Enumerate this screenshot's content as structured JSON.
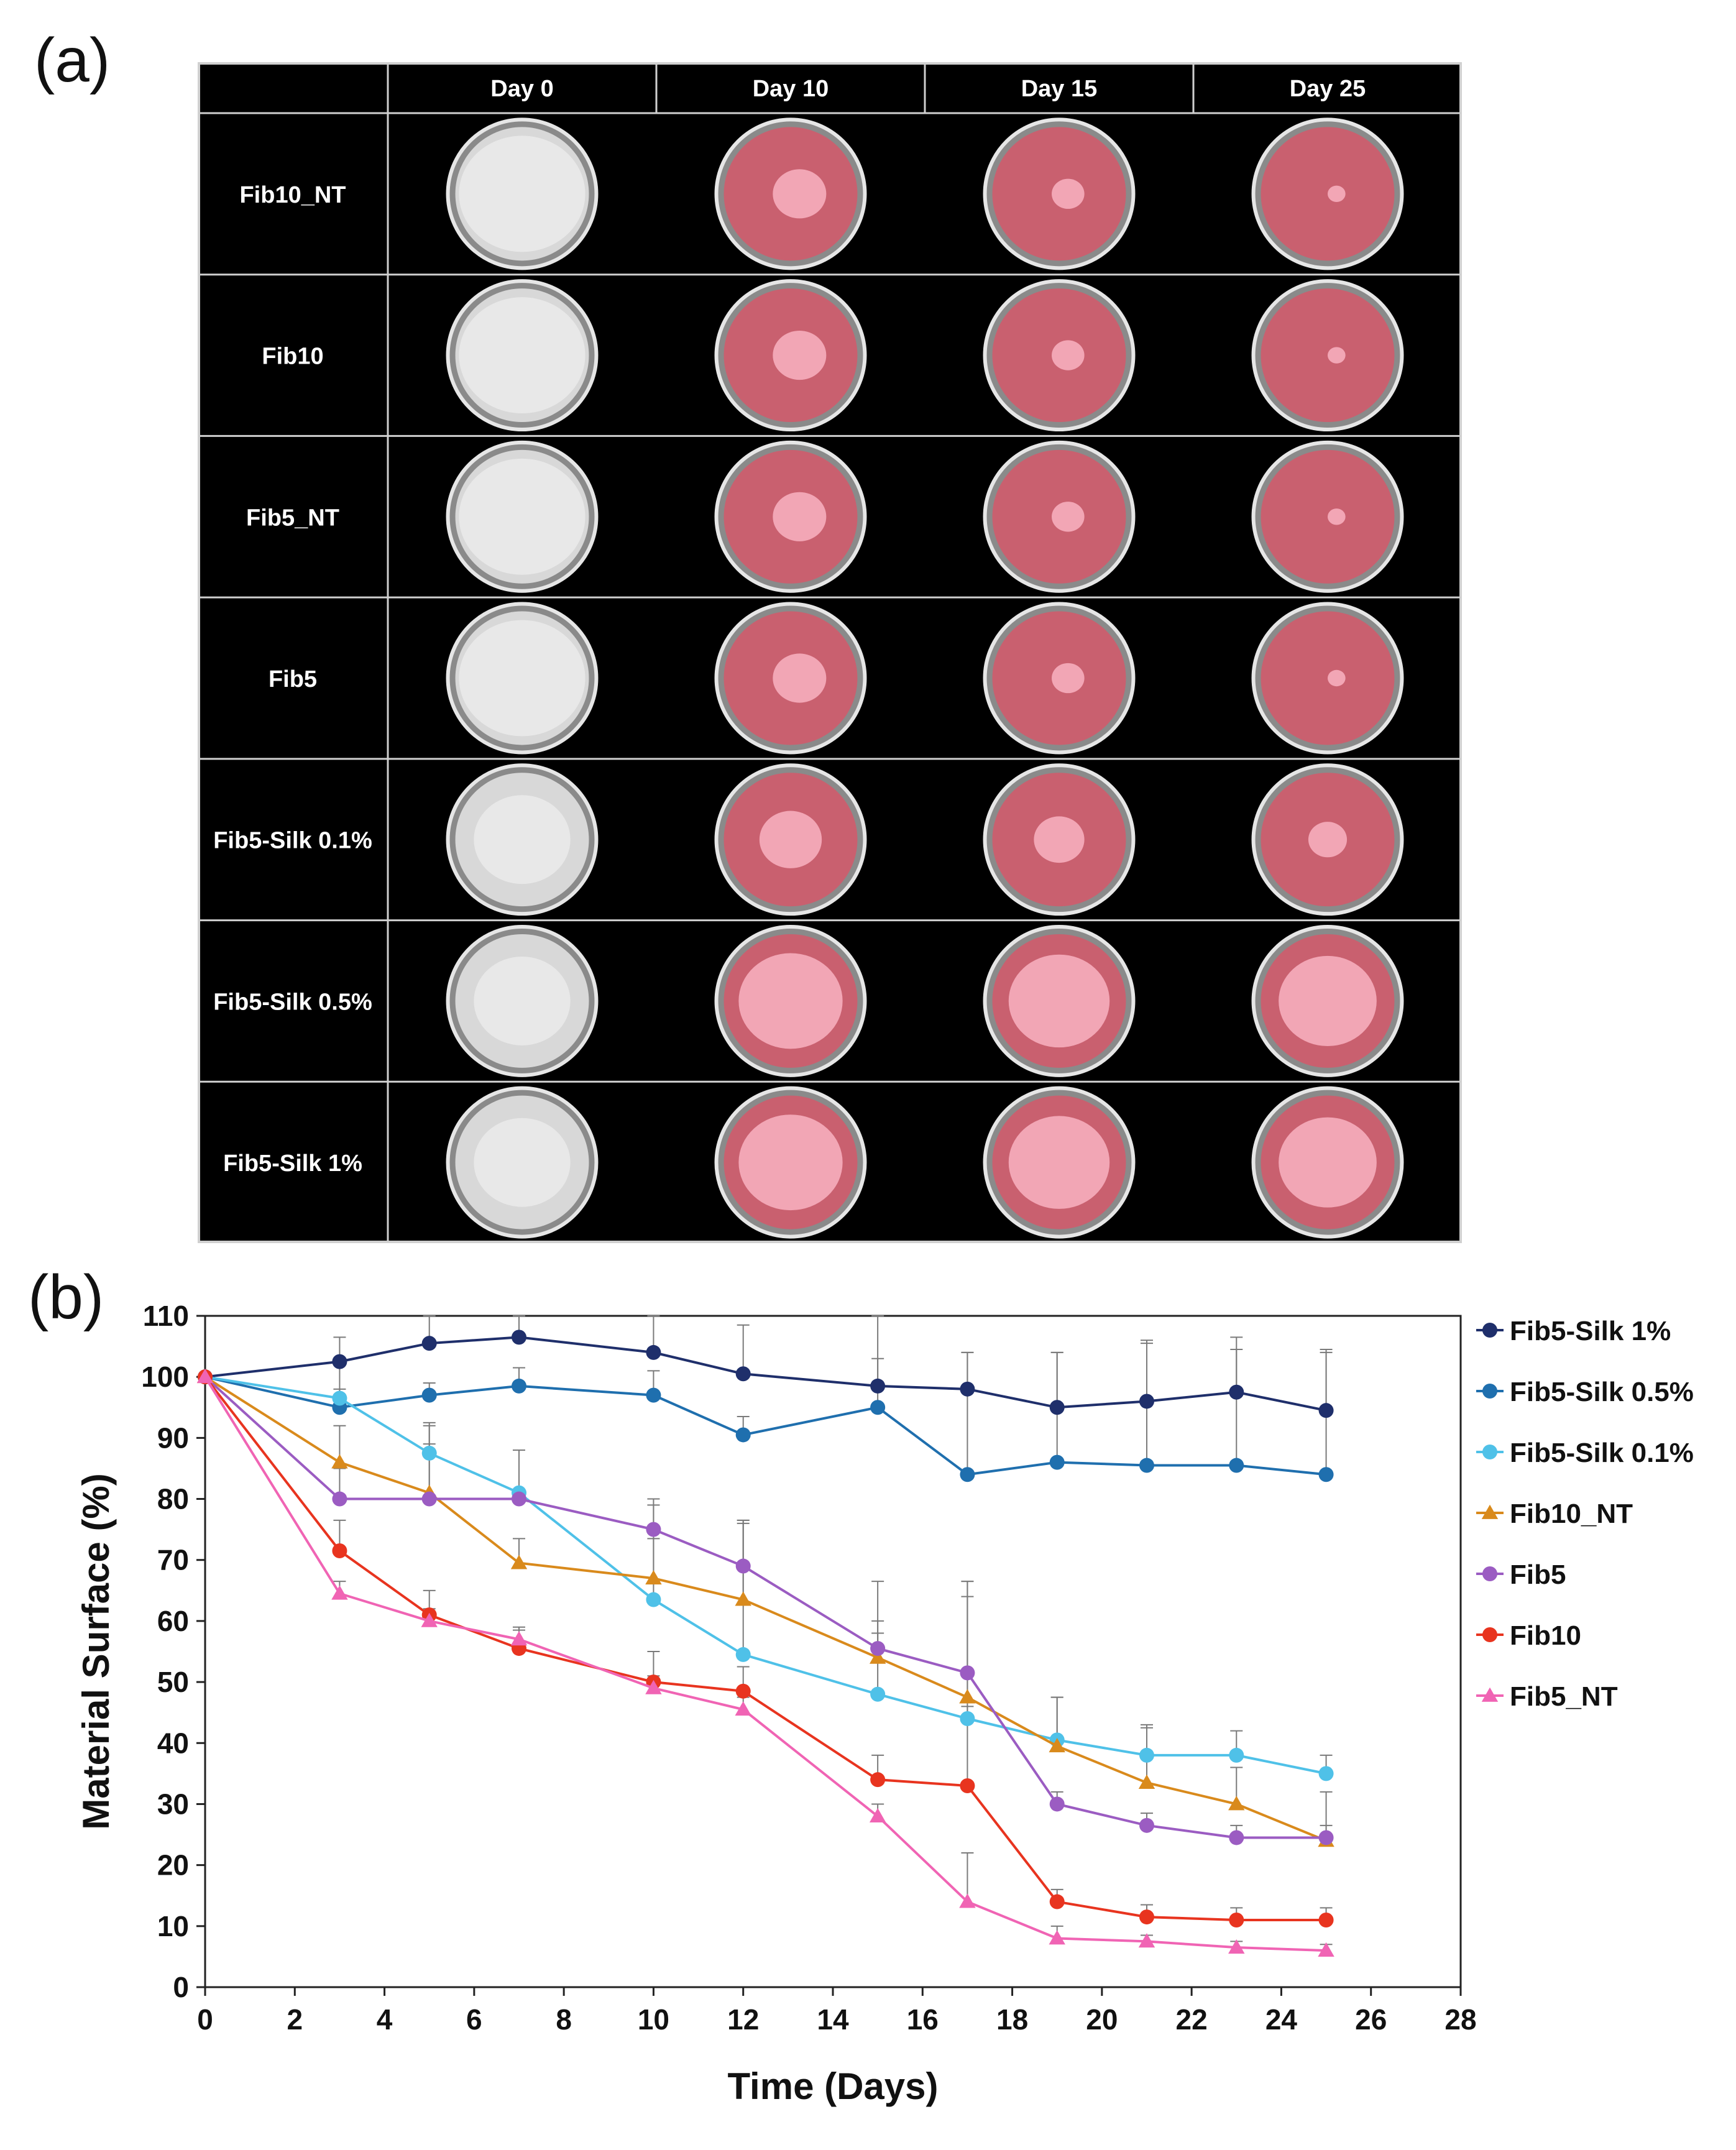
{
  "panel_labels": {
    "a": "(a)",
    "b": "(b)"
  },
  "photo_grid": {
    "columns": [
      "Day 0",
      "Day 10",
      "Day 15",
      "Day 25"
    ],
    "rows": [
      "Fib10_NT",
      "Fib10",
      "Fib5_NT",
      "Fib5",
      "Fib5-Silk 0.1%",
      "Fib5-Silk 0.5%",
      "Fib5-Silk 1%"
    ],
    "colors": {
      "background": "#000000",
      "gridline": "#d0d0d0",
      "text": "#ffffff",
      "medium": "#c9606f",
      "dry_disc": "#d8d8d8",
      "scaffold_pink": "#f4aab8"
    }
  },
  "chart_data": {
    "type": "line",
    "title": "",
    "xlabel": "Time (Days)",
    "ylabel": "Material Surface (%)",
    "xlim": [
      0,
      28
    ],
    "ylim": [
      0,
      110
    ],
    "xticks": [
      0,
      2,
      4,
      6,
      8,
      10,
      12,
      14,
      16,
      18,
      20,
      22,
      24,
      26,
      28
    ],
    "yticks": [
      0,
      10,
      20,
      30,
      40,
      50,
      60,
      70,
      80,
      90,
      100,
      110
    ],
    "grid": false,
    "legend_position": "right",
    "series": [
      {
        "name": "Fib5-Silk 1%",
        "color": "#1f2f6b",
        "marker": "circle",
        "x": [
          0,
          3,
          5,
          7,
          10,
          12,
          15,
          17,
          19,
          21,
          23,
          25
        ],
        "y": [
          100,
          102.5,
          105.5,
          106.5,
          104,
          100.5,
          98.5,
          98,
          95,
          96,
          97.5,
          94.5
        ],
        "err": [
          0,
          4,
          5,
          5,
          6,
          8,
          12,
          6,
          9,
          10,
          9,
          10
        ]
      },
      {
        "name": "Fib5-Silk 0.5%",
        "color": "#1f6fae",
        "marker": "circle",
        "x": [
          0,
          3,
          5,
          7,
          10,
          12,
          15,
          17,
          19,
          21,
          23,
          25
        ],
        "y": [
          100,
          95,
          97,
          98.5,
          97,
          90.5,
          95,
          84,
          86,
          85.5,
          85.5,
          84
        ],
        "err": [
          0,
          3,
          2,
          3,
          4,
          3,
          8,
          20,
          18,
          20,
          19,
          20
        ]
      },
      {
        "name": "Fib5-Silk 0.1%",
        "color": "#4fc1e8",
        "marker": "circle",
        "x": [
          0,
          3,
          5,
          7,
          10,
          12,
          15,
          17,
          19,
          21,
          23,
          25
        ],
        "y": [
          100,
          96.5,
          87.5,
          81,
          63.5,
          54.5,
          48,
          44,
          40.5,
          38,
          38,
          35
        ],
        "err": [
          0,
          6,
          5,
          7,
          10,
          22,
          12,
          20,
          7,
          5,
          4,
          3
        ]
      },
      {
        "name": "Fib10_NT",
        "color": "#d98a1c",
        "marker": "triangle",
        "x": [
          0,
          3,
          5,
          7,
          10,
          12,
          15,
          17,
          19,
          21,
          23,
          25
        ],
        "y": [
          100,
          86,
          81,
          69.5,
          67,
          63.5,
          54,
          47.5,
          39.5,
          33.5,
          30,
          24
        ],
        "err": [
          0,
          6,
          8,
          4,
          12,
          13,
          4,
          19,
          8,
          9,
          6,
          8
        ]
      },
      {
        "name": "Fib5",
        "color": "#9b5cc2",
        "marker": "circle",
        "x": [
          0,
          3,
          5,
          7,
          10,
          12,
          15,
          17,
          19,
          21,
          23,
          25
        ],
        "y": [
          100,
          80,
          80,
          80,
          75,
          69,
          55.5,
          51.5,
          30,
          26.5,
          24.5,
          24.5
        ],
        "err": [
          0,
          5,
          12,
          8,
          5,
          7,
          11,
          15,
          2,
          2,
          2,
          2
        ]
      },
      {
        "name": "Fib10",
        "color": "#e8341f",
        "marker": "circle",
        "x": [
          0,
          3,
          5,
          7,
          10,
          12,
          15,
          17,
          19,
          21,
          23,
          25
        ],
        "y": [
          100,
          71.5,
          61,
          55.5,
          50,
          48.5,
          34,
          33,
          14,
          11.5,
          11,
          11
        ],
        "err": [
          0,
          5,
          4,
          3,
          5,
          4,
          4,
          13,
          2,
          2,
          2,
          2
        ]
      },
      {
        "name": "Fib5_NT",
        "color": "#f064b4",
        "marker": "triangle",
        "x": [
          0,
          3,
          5,
          7,
          10,
          12,
          15,
          17,
          19,
          21,
          23,
          25
        ],
        "y": [
          100,
          64.5,
          60,
          57,
          49,
          45.5,
          28,
          14,
          8,
          7.5,
          6.5,
          6
        ],
        "err": [
          0,
          2,
          2,
          2,
          2,
          2,
          2,
          8,
          2,
          1,
          1,
          1
        ]
      }
    ]
  }
}
